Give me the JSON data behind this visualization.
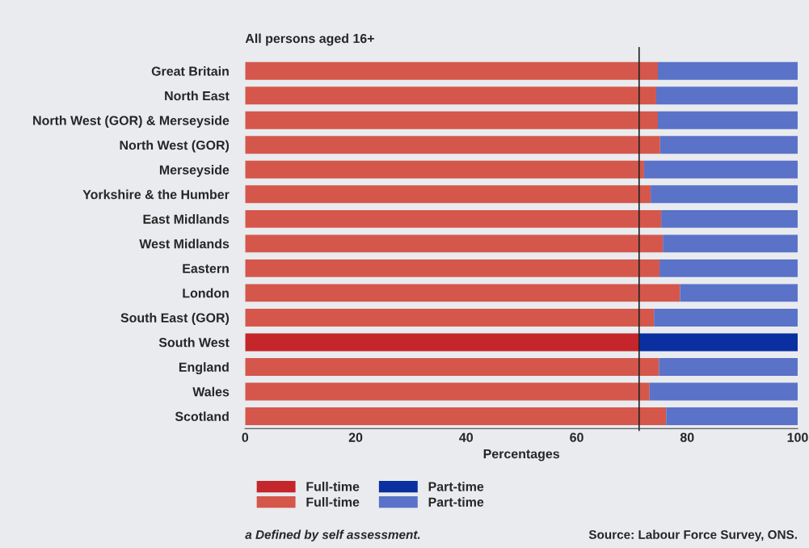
{
  "chart_data": {
    "type": "bar",
    "orientation": "horizontal",
    "stacked": true,
    "title": "All persons aged 16+",
    "xlabel": "Percentages",
    "categories": [
      "Great Britain",
      "North East",
      "North West (GOR) & Merseyside",
      "North West (GOR)",
      "Merseyside",
      "Yorkshire & the Humber",
      "East Midlands",
      "West Midlands",
      "Eastern",
      "London",
      "South East (GOR)",
      "South West",
      "England",
      "Wales",
      "Scotland"
    ],
    "series": [
      {
        "name": "Full-time",
        "color": "#c4262b",
        "values": [
          null,
          null,
          null,
          null,
          null,
          null,
          null,
          null,
          null,
          null,
          null,
          71.3,
          null,
          null,
          null
        ]
      },
      {
        "name": "Full-time",
        "color": "#d5574b",
        "values": [
          74.7,
          74.4,
          74.7,
          75.1,
          72.2,
          73.4,
          75.3,
          75.6,
          75.0,
          78.7,
          74.0,
          null,
          74.9,
          73.2,
          76.2
        ]
      },
      {
        "name": "Part-time",
        "color": "#0a2fa0",
        "values": [
          null,
          null,
          null,
          null,
          null,
          null,
          null,
          null,
          null,
          null,
          null,
          28.7,
          null,
          null,
          null
        ]
      },
      {
        "name": "Part-time",
        "color": "#5a72c8",
        "values": [
          25.3,
          25.6,
          25.3,
          24.9,
          27.8,
          26.6,
          24.7,
          24.4,
          25.0,
          21.3,
          26.0,
          null,
          25.1,
          26.8,
          23.8
        ]
      }
    ],
    "xlim": [
      0,
      100
    ],
    "xticks": [
      0,
      20,
      40,
      60,
      80,
      100
    ],
    "ref_lines": [
      {
        "axis": "x",
        "value": 71.3,
        "color": "#222222"
      }
    ],
    "legend": "bottom",
    "grid": false,
    "annotations": [
      "a Defined by self assessment.",
      "Source: Labour Force Survey, ONS."
    ]
  }
}
